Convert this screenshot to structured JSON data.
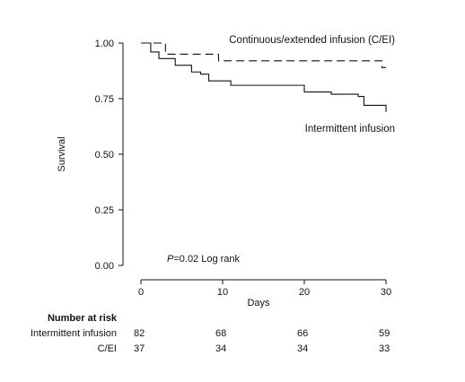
{
  "chart_data": {
    "type": "line",
    "title": "",
    "xlabel": "Days",
    "ylabel": "Survival",
    "xlim": [
      0,
      30
    ],
    "ylim": [
      0,
      1
    ],
    "x_ticks": [
      "0",
      "10",
      "20",
      "30"
    ],
    "y_ticks": [
      "0.00",
      "0.25",
      "0.50",
      "0.75",
      "1.00"
    ],
    "grid": false,
    "annotation": {
      "italic": "P",
      "rest": "=0.02 Log rank"
    },
    "series": [
      {
        "name": "Continuous/extended infusion (C/EI)",
        "style": "dashed",
        "color": "#111111",
        "steps": [
          [
            0,
            1.0
          ],
          [
            3,
            0.95
          ],
          [
            9.5,
            0.92
          ],
          [
            29.5,
            0.89
          ],
          [
            30,
            0.89
          ]
        ]
      },
      {
        "name": "Intermittent infusion",
        "style": "solid",
        "color": "#111111",
        "steps": [
          [
            0,
            1.0
          ],
          [
            1.2,
            0.96
          ],
          [
            2.2,
            0.93
          ],
          [
            4.2,
            0.9
          ],
          [
            6.2,
            0.87
          ],
          [
            7.3,
            0.86
          ],
          [
            8.3,
            0.83
          ],
          [
            11,
            0.81
          ],
          [
            20,
            0.78
          ],
          [
            23.3,
            0.77
          ],
          [
            26.6,
            0.76
          ],
          [
            27.3,
            0.72
          ],
          [
            30,
            0.69
          ]
        ]
      }
    ],
    "risk_table": {
      "header": "Number at risk",
      "columns_x": [
        0,
        10,
        20,
        30
      ],
      "rows": [
        {
          "label": "Intermittent infusion",
          "values": [
            "82",
            "68",
            "66",
            "59"
          ]
        },
        {
          "label": "C/EI",
          "values": [
            "37",
            "34",
            "34",
            "33"
          ]
        }
      ]
    }
  }
}
